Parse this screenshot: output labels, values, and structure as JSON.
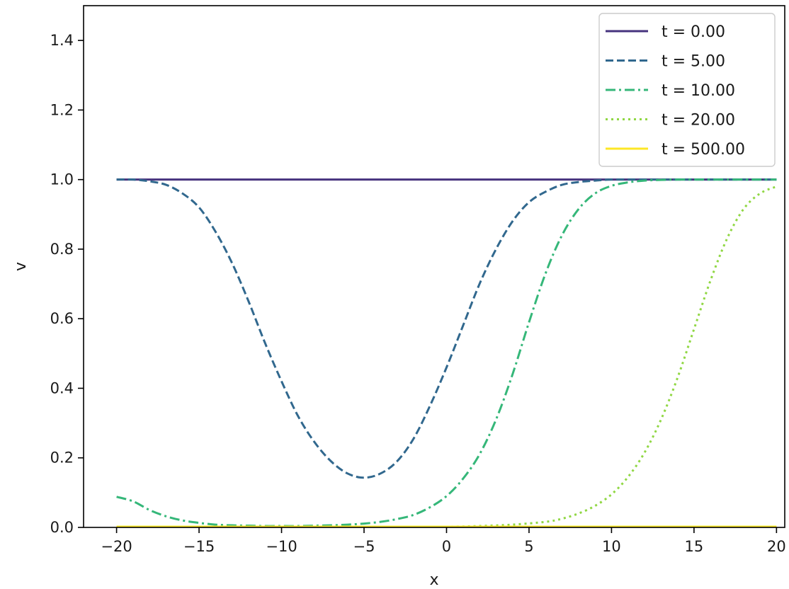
{
  "chart_data": {
    "type": "line",
    "title": "",
    "xlabel": "x",
    "ylabel": "v",
    "xlim": [
      -22,
      20.5
    ],
    "ylim": [
      0,
      1.5
    ],
    "xticks": [
      -20,
      -15,
      -10,
      -5,
      0,
      5,
      10,
      15,
      20
    ],
    "yticks": [
      0.0,
      0.2,
      0.4,
      0.6,
      0.8,
      1.0,
      1.2,
      1.4
    ],
    "xtick_labels": [
      "−20",
      "−15",
      "−10",
      "−5",
      "0",
      "5",
      "10",
      "15",
      "20"
    ],
    "ytick_labels": [
      "0.0",
      "0.2",
      "0.4",
      "0.6",
      "0.8",
      "1.0",
      "1.2",
      "1.4"
    ],
    "grid": false,
    "legend_position": "top-right",
    "series": [
      {
        "name": "t = 0.00",
        "color": "#46337e",
        "dash": "solid",
        "x": [
          -20,
          -15,
          -10,
          -5,
          0,
          5,
          10,
          15,
          20
        ],
        "y": [
          1.0,
          1.0,
          1.0,
          1.0,
          1.0,
          1.0,
          1.0,
          1.0,
          1.0
        ]
      },
      {
        "name": "t = 5.00",
        "color": "#31688e",
        "dash": "dashed",
        "x": [
          -20,
          -19,
          -18,
          -17,
          -16,
          -15,
          -14,
          -13,
          -12,
          -11,
          -10,
          -9,
          -8,
          -7,
          -6,
          -5,
          -4,
          -3,
          -2,
          -1,
          0,
          1,
          2,
          3,
          4,
          5,
          6,
          7,
          8,
          9,
          10,
          12,
          14,
          16,
          18,
          20
        ],
        "y": [
          1.0,
          1.0,
          0.995,
          0.985,
          0.96,
          0.92,
          0.85,
          0.76,
          0.65,
          0.53,
          0.42,
          0.32,
          0.245,
          0.19,
          0.155,
          0.143,
          0.155,
          0.19,
          0.255,
          0.35,
          0.46,
          0.58,
          0.7,
          0.8,
          0.88,
          0.935,
          0.965,
          0.985,
          0.993,
          0.997,
          1.0,
          1.0,
          1.0,
          1.0,
          1.0,
          1.0
        ]
      },
      {
        "name": "t = 10.00",
        "color": "#35b779",
        "dash": "dashdot",
        "x": [
          -20,
          -19,
          -18,
          -17,
          -16,
          -15,
          -14,
          -13,
          -12,
          -11,
          -10,
          -9,
          -8,
          -7,
          -6,
          -5,
          -4,
          -3,
          -2,
          -1,
          0,
          1,
          2,
          3,
          4,
          5,
          6,
          7,
          8,
          9,
          10,
          11,
          12,
          13,
          14,
          15,
          16,
          18,
          20
        ],
        "y": [
          0.088,
          0.075,
          0.05,
          0.032,
          0.02,
          0.013,
          0.008,
          0.006,
          0.005,
          0.004,
          0.004,
          0.004,
          0.005,
          0.006,
          0.008,
          0.011,
          0.016,
          0.024,
          0.036,
          0.058,
          0.09,
          0.14,
          0.21,
          0.31,
          0.44,
          0.59,
          0.73,
          0.84,
          0.915,
          0.96,
          0.982,
          0.992,
          0.997,
          0.999,
          1.0,
          1.0,
          1.0,
          1.0,
          1.0
        ]
      },
      {
        "name": "t = 20.00",
        "color": "#90d743",
        "dash": "dotted",
        "x": [
          -20,
          -10,
          -5,
          0,
          2,
          4,
          6,
          7,
          8,
          9,
          10,
          11,
          12,
          13,
          14,
          15,
          16,
          17,
          18,
          19,
          20
        ],
        "y": [
          0.0,
          0.0,
          0.0,
          0.002,
          0.004,
          0.008,
          0.016,
          0.025,
          0.04,
          0.062,
          0.095,
          0.145,
          0.215,
          0.31,
          0.43,
          0.57,
          0.71,
          0.83,
          0.915,
          0.96,
          0.98
        ]
      },
      {
        "name": "t = 500.00",
        "color": "#fde725",
        "dash": "solid",
        "x": [
          -20,
          -10,
          0,
          10,
          20
        ],
        "y": [
          0.002,
          0.002,
          0.002,
          0.002,
          0.002
        ]
      }
    ]
  }
}
